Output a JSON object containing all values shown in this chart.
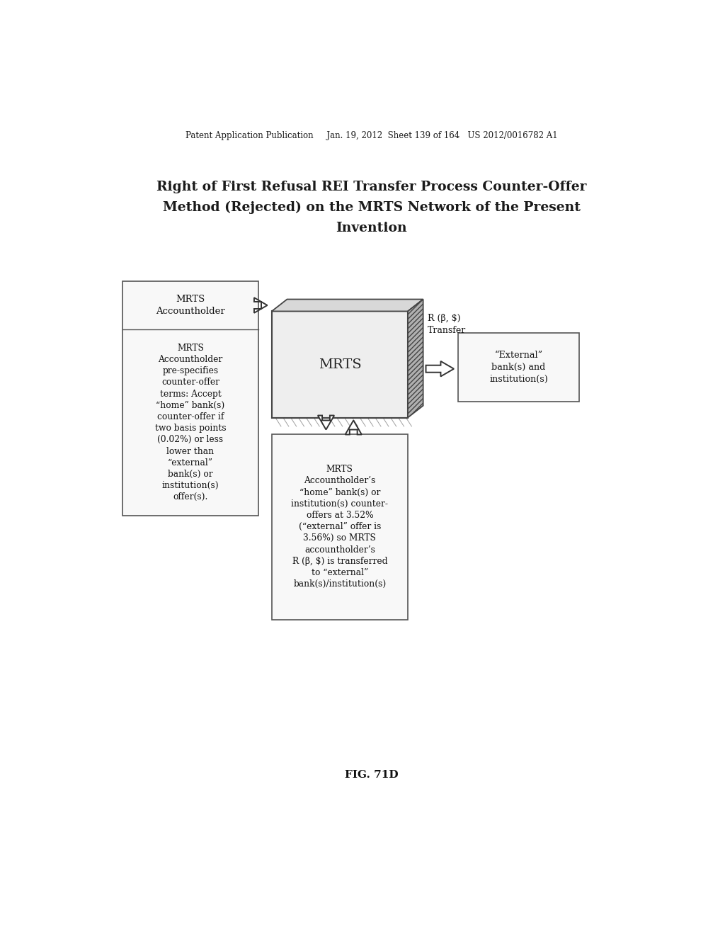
{
  "bg_color": "#ffffff",
  "header_text": "Patent Application Publication     Jan. 19, 2012  Sheet 139 of 164   US 2012/0016782 A1",
  "title_lines": [
    "Right of First Refusal REI Transfer Process Counter-Offer",
    "Method (Rejected) on the MRTS Network of the Present",
    "Invention"
  ],
  "fig_label": "FIG. 71D",
  "box1_title": "MRTS\nAccountholder",
  "box1_body": "MRTS\nAccountholder\npre-specifies\ncounter-offer\nterms: Accept\n“home” bank(s)\ncounter-offer if\ntwo basis points\n(0.02%) or less\nlower than\n“external”\nbank(s) or\ninstitution(s)\noffer(s).",
  "mrts_label": "MRTS",
  "r_transfer_label": "R (β, $)\nTransfer",
  "external_box_text": "“External”\nbank(s) and\ninstitution(s)",
  "bottom_box_text": "MRTS\nAccountholder’s\n“home” bank(s) or\ninstitution(s) counter-\noffers at 3.52%\n(“external” offer is\n3.56%) so MRTS\naccountholder’s\nR (β, $) is transferred\nto “external”\nbank(s)/institution(s)"
}
